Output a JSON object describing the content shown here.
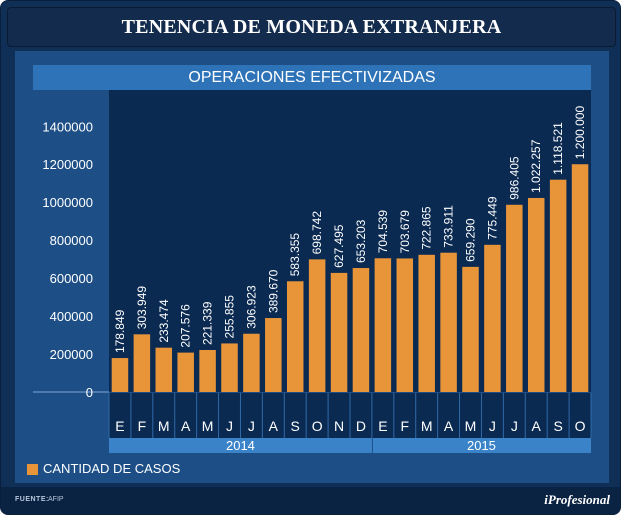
{
  "header": {
    "title": "TENENCIA DE MONEDA EXTRANJERA"
  },
  "chart_data": {
    "type": "bar",
    "title": "OPERACIONES EFECTIVIZADAS",
    "categories": [
      "E",
      "F",
      "M",
      "A",
      "M",
      "J",
      "J",
      "A",
      "S",
      "O",
      "N",
      "D",
      "E",
      "F",
      "M",
      "A",
      "M",
      "J",
      "J",
      "A",
      "S",
      "O"
    ],
    "groups": [
      {
        "label": "2014",
        "count": 12
      },
      {
        "label": "2015",
        "count": 10
      }
    ],
    "series": [
      {
        "name": "CANTIDAD DE CASOS",
        "color": "#e8953a",
        "values": [
          178849,
          303949,
          233474,
          207576,
          221339,
          255855,
          306923,
          389670,
          583355,
          698742,
          627495,
          653203,
          704539,
          703679,
          722865,
          733911,
          659290,
          775449,
          986405,
          1022257,
          1118521,
          1200000
        ],
        "labels": [
          "178.849",
          "303.949",
          "233.474",
          "207.576",
          "221.339",
          "255.855",
          "306.923",
          "389.670",
          "583.355",
          "698.742",
          "627.495",
          "653.203",
          "704.539",
          "703.679",
          "722.865",
          "733.911",
          "659.290",
          "775.449",
          "986.405",
          "1.022.257",
          "1.118.521",
          "1.200.000"
        ]
      }
    ],
    "yticks": [
      0,
      200000,
      400000,
      600000,
      800000,
      1000000,
      1200000,
      1400000
    ],
    "ytick_labels": [
      "0",
      "200000",
      "400000",
      "600000",
      "800000",
      "1000000",
      "1200000",
      "1400000"
    ],
    "ylim": [
      0,
      1450000
    ],
    "xlabel": "",
    "ylabel": ""
  },
  "legend": {
    "label": "CANTIDAD DE CASOS"
  },
  "footer": {
    "source_key": "FUENTE:",
    "source_value": "AFIP",
    "brand": "iProfesional"
  },
  "colors": {
    "bar": "#e8953a",
    "panel": "#1d4f86",
    "frame": "#0f2f56"
  }
}
